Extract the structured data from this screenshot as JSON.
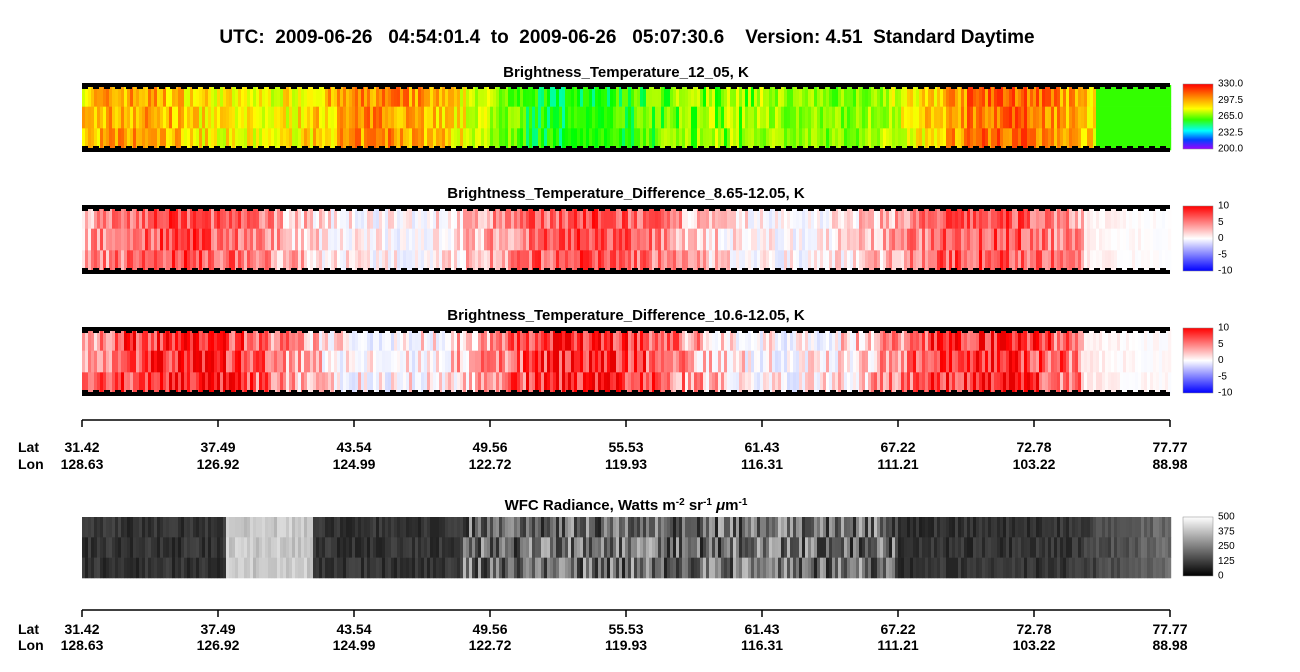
{
  "title": "UTC:  2009-06-26   04:54:01.4  to  2009-06-26   05:07:30.6    Version: 4.51  Standard Daytime",
  "panels": [
    {
      "title": "Brightness_Temperature_12_05, K",
      "colorbar_labels": [
        "330.0",
        "297.5",
        "265.0",
        "232.5",
        "200.0"
      ]
    },
    {
      "title": "Brightness_Temperature_Difference_8.65-12.05, K",
      "colorbar_labels": [
        "10",
        "5",
        "0",
        "-5",
        "-10"
      ]
    },
    {
      "title": "Brightness_Temperature_Difference_10.6-12.05, K",
      "colorbar_labels": [
        "10",
        "5",
        "0",
        "-5",
        "-10"
      ]
    }
  ],
  "radiance_panel": {
    "title_parts": [
      "WFC Radiance, Watts m",
      "-2",
      " sr",
      "-1",
      " ",
      "μ",
      "m",
      "-1"
    ],
    "colorbar_labels": [
      "500",
      "375",
      "250",
      "125",
      "0"
    ]
  },
  "axis": {
    "lat_label": "Lat",
    "lon_label": "Lon",
    "lat": [
      "31.42",
      "37.49",
      "43.54",
      "49.56",
      "55.53",
      "61.43",
      "67.22",
      "72.78",
      "77.77"
    ],
    "lon": [
      "128.63",
      "126.92",
      "124.99",
      "122.72",
      "119.93",
      "116.31",
      "111.21",
      "103.22",
      "88.98"
    ]
  }
}
